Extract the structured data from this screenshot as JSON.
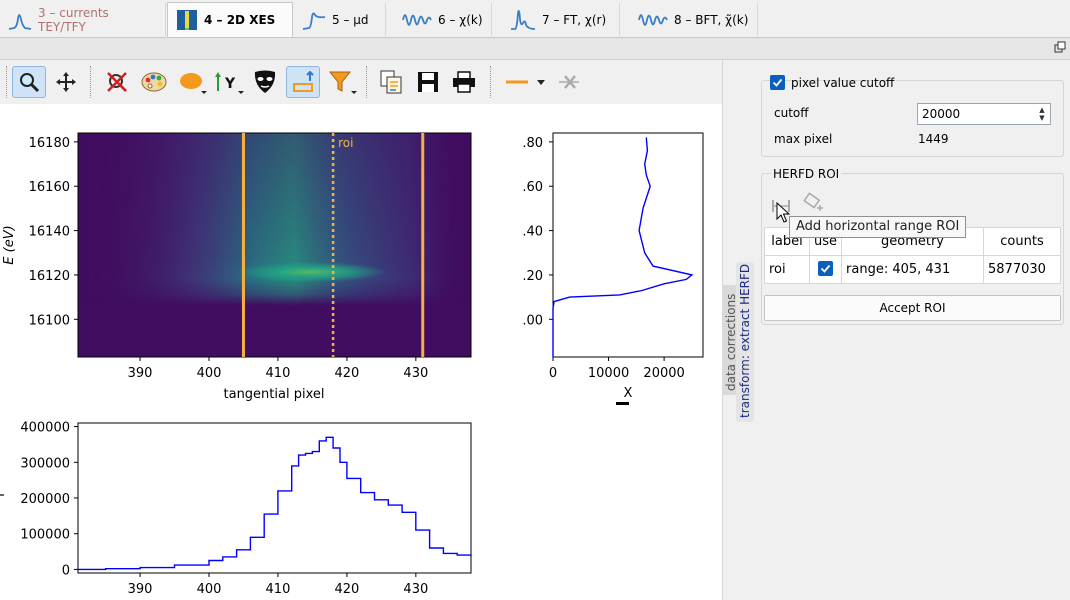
{
  "tabs": [
    {
      "label": "3 – currents TEY/TFY",
      "icon": "peak-curve-icon",
      "state": "disabled"
    },
    {
      "label": "4 – 2D XES",
      "icon": "image-map-icon",
      "state": "active"
    },
    {
      "label": "5 – μd",
      "icon": "edge-curve-icon",
      "state": "normal"
    },
    {
      "label": "6 – χ(k)",
      "icon": "oscillation-icon",
      "state": "normal"
    },
    {
      "label": "7 – FT, χ(r)",
      "icon": "ft-peaks-icon",
      "state": "normal"
    },
    {
      "label": "8 – BFT, χ̃(k)",
      "icon": "oscillation-icon",
      "state": "normal"
    }
  ],
  "toolbar": {
    "items": [
      "zoom-icon",
      "pan-icon",
      "reset-zoom-icon",
      "colormap-icon",
      "marker-shape-icon",
      "y-axis-icon",
      "mask-icon",
      "roi-icon",
      "filter-icon",
      "copy-icon",
      "save-icon",
      "print-icon",
      "curve-style-icon",
      "remove-curve-icon"
    ]
  },
  "colors": {
    "roi_line": "#f5b042",
    "curve": "#0000ff",
    "checkbox": "#0b5fbd",
    "map_background": "#440154"
  },
  "plots": {
    "image": {
      "ylabel": "E (eV)",
      "xlabel": "tangential pixel",
      "x_ticks": [
        "390",
        "400",
        "410",
        "420",
        "430"
      ],
      "y_ticks": [
        "16180",
        "16160",
        "16140",
        "16120",
        "16100"
      ],
      "roi_label": "roi",
      "xlim": [
        381,
        438
      ],
      "ylim": [
        16083,
        16184
      ],
      "roi_range": [
        405,
        431
      ],
      "roi_center": 418
    },
    "side": {
      "xlabel": "X",
      "x_ticks": [
        "0",
        "10000",
        "20000"
      ],
      "y_ticks": [
        ".80",
        ".60",
        ".40",
        ".20",
        ".00"
      ]
    },
    "bottom": {
      "x_ticks": [
        "390",
        "400",
        "410",
        "420",
        "430"
      ],
      "y_ticks": [
        "400000",
        "300000",
        "200000",
        "100000",
        "0"
      ]
    }
  },
  "chart_data": [
    {
      "type": "heatmap",
      "title": "",
      "xlabel": "tangential pixel",
      "ylabel": "E (eV)",
      "xlim": [
        381,
        438
      ],
      "ylim": [
        16083,
        16184
      ],
      "annotation": "roi",
      "roi": [
        405,
        431
      ]
    },
    {
      "type": "line",
      "xlabel": "X",
      "xlim": [
        0,
        27000
      ],
      "ylim": [
        16083,
        16184
      ],
      "x": [
        0,
        0,
        200,
        3000,
        12000,
        16000,
        20000,
        24000,
        25000,
        18000,
        16500,
        15500,
        16200,
        17500,
        16800,
        16500,
        17000,
        16800
      ],
      "y": [
        16083,
        16105,
        16108,
        16110,
        16111,
        16113,
        16116,
        16118,
        16120,
        16124,
        16130,
        16140,
        16150,
        16160,
        16165,
        16170,
        16176,
        16182
      ]
    },
    {
      "type": "line",
      "xlim": [
        381,
        438
      ],
      "ylim": [
        -10000,
        410000
      ],
      "x": [
        381,
        385,
        390,
        395,
        400,
        402,
        404,
        406,
        408,
        410,
        412,
        413,
        414,
        415,
        416,
        417,
        418,
        419,
        420,
        422,
        424,
        426,
        428,
        430,
        432,
        434,
        436,
        438
      ],
      "y": [
        0,
        2000,
        5000,
        12000,
        25000,
        35000,
        55000,
        90000,
        155000,
        220000,
        290000,
        320000,
        325000,
        330000,
        360000,
        370000,
        340000,
        300000,
        255000,
        215000,
        195000,
        180000,
        160000,
        110000,
        60000,
        45000,
        40000,
        37000
      ]
    }
  ],
  "panel": {
    "pixel_cutoff": {
      "checkbox_label": "pixel value cutoff",
      "checked": true
    },
    "cutoff_label": "cutoff",
    "cutoff_value": "20000",
    "max_pixel_label": "max pixel",
    "max_pixel_value": "1449",
    "herfd_title": "HERFD ROI",
    "table": {
      "headers": [
        "label",
        "use",
        "geometry",
        "counts"
      ],
      "rows": [
        {
          "label": "roi",
          "use": true,
          "geometry": "range: 405, 431",
          "counts": "5877030"
        }
      ]
    },
    "accept_label": "Accept ROI",
    "tooltip": "Add horizontal range ROI"
  },
  "side_tabs": {
    "data_corrections": "data corrections",
    "transform": "transform: extract HERFD"
  }
}
